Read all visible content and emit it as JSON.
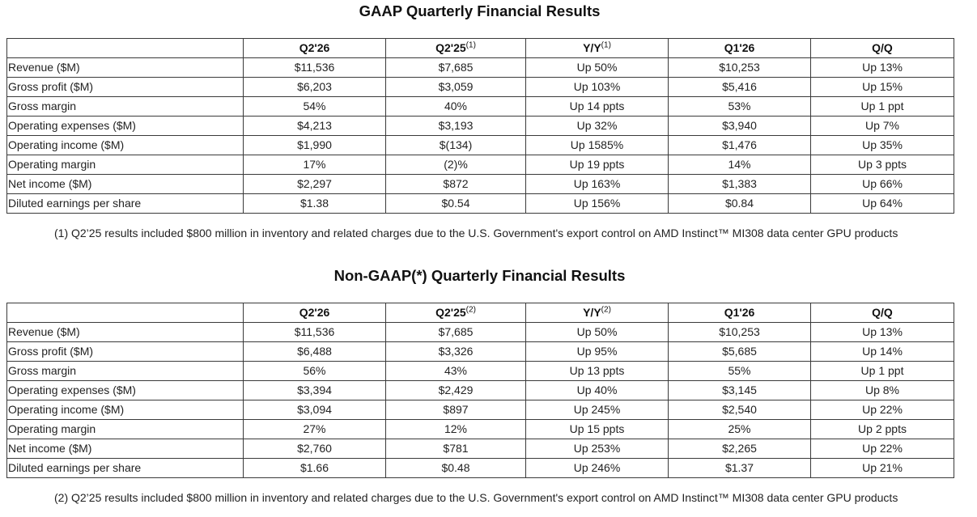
{
  "gaap": {
    "title": "GAAP Quarterly Financial Results",
    "headers": [
      {
        "label": "",
        "sup": ""
      },
      {
        "label": "Q2'26",
        "sup": ""
      },
      {
        "label": "Q2'25",
        "sup": "(1)"
      },
      {
        "label": "Y/Y",
        "sup": "(1)"
      },
      {
        "label": "Q1'26",
        "sup": ""
      },
      {
        "label": "Q/Q",
        "sup": ""
      }
    ],
    "rows": [
      [
        "Revenue ($M)",
        "$11,536",
        "$7,685",
        "Up 50%",
        "$10,253",
        "Up 13%"
      ],
      [
        "Gross profit ($M)",
        "$6,203",
        "$3,059",
        "Up 103%",
        "$5,416",
        "Up 15%"
      ],
      [
        "Gross margin",
        "54%",
        "40%",
        "Up 14 ppts",
        "53%",
        "Up 1 ppt"
      ],
      [
        "Operating expenses ($M)",
        "$4,213",
        "$3,193",
        "Up 32%",
        "$3,940",
        "Up 7%"
      ],
      [
        "Operating income ($M)",
        "$1,990",
        "$(134)",
        "Up 1585%",
        "$1,476",
        "Up 35%"
      ],
      [
        "Operating margin",
        "17%",
        "(2)%",
        "Up 19 ppts",
        "14%",
        "Up 3 ppts"
      ],
      [
        "Net income ($M)",
        "$2,297",
        "$872",
        "Up 163%",
        "$1,383",
        "Up 66%"
      ],
      [
        "Diluted earnings per share",
        "$1.38",
        "$0.54",
        "Up 156%",
        "$0.84",
        "Up 64%"
      ]
    ],
    "footnote": "(1) Q2’25 results included $800 million in inventory and related charges due to the U.S. Government's export control on AMD Instinct™ MI308 data center GPU products"
  },
  "non_gaap": {
    "title": "Non-GAAP(*) Quarterly Financial Results",
    "headers": [
      {
        "label": "",
        "sup": ""
      },
      {
        "label": "Q2'26",
        "sup": ""
      },
      {
        "label": "Q2'25",
        "sup": "(2)"
      },
      {
        "label": "Y/Y",
        "sup": "(2)"
      },
      {
        "label": "Q1'26",
        "sup": ""
      },
      {
        "label": "Q/Q",
        "sup": ""
      }
    ],
    "rows": [
      [
        "Revenue ($M)",
        "$11,536",
        "$7,685",
        "Up 50%",
        "$10,253",
        "Up 13%"
      ],
      [
        "Gross profit ($M)",
        "$6,488",
        "$3,326",
        "Up 95%",
        "$5,685",
        "Up 14%"
      ],
      [
        "Gross margin",
        "56%",
        "43%",
        "Up 13 ppts",
        "55%",
        "Up 1 ppt"
      ],
      [
        "Operating expenses ($M)",
        "$3,394",
        "$2,429",
        "Up 40%",
        "$3,145",
        "Up 8%"
      ],
      [
        "Operating income ($M)",
        "$3,094",
        "$897",
        "Up 245%",
        "$2,540",
        "Up 22%"
      ],
      [
        "Operating margin",
        "27%",
        "12%",
        "Up 15 ppts",
        "25%",
        "Up 2 ppts"
      ],
      [
        "Net income ($M)",
        "$2,760",
        "$781",
        "Up 253%",
        "$2,265",
        "Up 22%"
      ],
      [
        "Diluted earnings per share",
        "$1.66",
        "$0.48",
        "Up 246%",
        "$1.37",
        "Up 21%"
      ]
    ],
    "footnote": "(2) Q2’25 results included $800 million in inventory and related charges due to the U.S. Government's export control on AMD Instinct™ MI308 data center GPU products"
  }
}
